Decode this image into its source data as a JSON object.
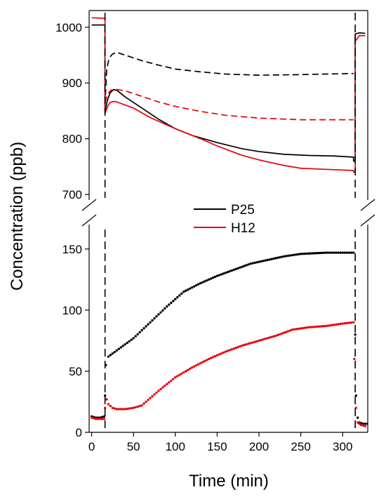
{
  "chart_data": {
    "type": "line",
    "xlabel": "Time (min)",
    "ylabel": "Concentration (ppb)",
    "xlim": [
      -3,
      330
    ],
    "x_ticks": [
      "0",
      "50",
      "100",
      "150",
      "200",
      "250",
      "300"
    ],
    "x_tick_values": [
      0,
      50,
      100,
      150,
      200,
      250,
      300
    ],
    "broken_y_axis": true,
    "upper_panel": {
      "ylim": [
        690,
        1030
      ],
      "y_ticks": [
        "700",
        "800",
        "900",
        "1000"
      ],
      "y_tick_values": [
        700,
        800,
        900,
        1000
      ]
    },
    "lower_panel": {
      "ylim": [
        0,
        170
      ],
      "y_ticks": [
        "0",
        "50",
        "100",
        "150"
      ],
      "y_tick_values": [
        0,
        50,
        100,
        150
      ]
    },
    "vertical_markers": [
      16,
      315
    ],
    "legend": {
      "position": "center",
      "entries": [
        {
          "label": "P25",
          "color": "#000000"
        },
        {
          "label": "H12",
          "color": "#e8000b"
        }
      ]
    },
    "series": [
      {
        "id": "upper-black-solid",
        "panel": "upper",
        "color": "#000000",
        "style": "solid",
        "points": [
          [
            0,
            1004
          ],
          [
            16,
            1004
          ],
          [
            16,
            850
          ],
          [
            19,
            870
          ],
          [
            22,
            882
          ],
          [
            26,
            888
          ],
          [
            30,
            887
          ],
          [
            40,
            875
          ],
          [
            60,
            855
          ],
          [
            80,
            835
          ],
          [
            100,
            818
          ],
          [
            120,
            806
          ],
          [
            150,
            793
          ],
          [
            180,
            782
          ],
          [
            200,
            777
          ],
          [
            230,
            772
          ],
          [
            260,
            770
          ],
          [
            290,
            769
          ],
          [
            313,
            767
          ],
          [
            313,
            760
          ],
          [
            315,
            760
          ],
          [
            315,
            988
          ],
          [
            320,
            990
          ],
          [
            327,
            989
          ]
        ]
      },
      {
        "id": "upper-black-dashed",
        "panel": "upper",
        "color": "#000000",
        "style": "dashed",
        "points": [
          [
            16,
            860
          ],
          [
            18,
            925
          ],
          [
            21,
            945
          ],
          [
            25,
            952
          ],
          [
            30,
            955
          ],
          [
            40,
            950
          ],
          [
            60,
            940
          ],
          [
            80,
            932
          ],
          [
            100,
            925
          ],
          [
            130,
            920
          ],
          [
            160,
            916
          ],
          [
            200,
            914
          ],
          [
            250,
            915
          ],
          [
            280,
            916
          ],
          [
            313,
            917
          ]
        ]
      },
      {
        "id": "upper-red-solid",
        "panel": "upper",
        "color": "#e8000b",
        "style": "solid",
        "points": [
          [
            0,
            1017
          ],
          [
            16,
            1016
          ],
          [
            16,
            845
          ],
          [
            19,
            858
          ],
          [
            22,
            865
          ],
          [
            26,
            867
          ],
          [
            30,
            866
          ],
          [
            50,
            855
          ],
          [
            70,
            838
          ],
          [
            100,
            818
          ],
          [
            130,
            800
          ],
          [
            150,
            787
          ],
          [
            180,
            770
          ],
          [
            200,
            762
          ],
          [
            230,
            752
          ],
          [
            250,
            747
          ],
          [
            280,
            745
          ],
          [
            313,
            743
          ],
          [
            313,
            740
          ],
          [
            315,
            740
          ],
          [
            315,
            975
          ],
          [
            320,
            985
          ],
          [
            327,
            985
          ]
        ]
      },
      {
        "id": "upper-red-dashed",
        "panel": "upper",
        "color": "#e8000b",
        "style": "dashed",
        "points": [
          [
            16,
            865
          ],
          [
            19,
            880
          ],
          [
            23,
            887
          ],
          [
            28,
            889
          ],
          [
            40,
            886
          ],
          [
            60,
            876
          ],
          [
            80,
            866
          ],
          [
            100,
            858
          ],
          [
            130,
            849
          ],
          [
            160,
            842
          ],
          [
            200,
            837
          ],
          [
            250,
            834
          ],
          [
            280,
            834
          ],
          [
            313,
            834
          ]
        ]
      },
      {
        "id": "lower-black-dotted",
        "panel": "lower",
        "color": "#000000",
        "style": "dotted",
        "points": [
          [
            0,
            13
          ],
          [
            5,
            12
          ],
          [
            10,
            12
          ],
          [
            15,
            13
          ],
          [
            16,
            30
          ],
          [
            17,
            55
          ],
          [
            20,
            62
          ],
          [
            30,
            67
          ],
          [
            50,
            77
          ],
          [
            70,
            90
          ],
          [
            90,
            103
          ],
          [
            110,
            115
          ],
          [
            130,
            122
          ],
          [
            150,
            128
          ],
          [
            170,
            133
          ],
          [
            190,
            138
          ],
          [
            210,
            141
          ],
          [
            230,
            144
          ],
          [
            250,
            146
          ],
          [
            280,
            147
          ],
          [
            300,
            147
          ],
          [
            313,
            147
          ],
          [
            315,
            80
          ],
          [
            316,
            30
          ],
          [
            318,
            12
          ],
          [
            320,
            8
          ],
          [
            325,
            7
          ],
          [
            330,
            7
          ]
        ]
      },
      {
        "id": "lower-red-dotted",
        "panel": "lower",
        "color": "#e8000b",
        "style": "dotted",
        "points": [
          [
            0,
            12
          ],
          [
            5,
            11
          ],
          [
            10,
            11
          ],
          [
            15,
            11
          ],
          [
            16,
            20
          ],
          [
            18,
            27
          ],
          [
            20,
            23
          ],
          [
            25,
            20
          ],
          [
            30,
            19
          ],
          [
            40,
            19
          ],
          [
            50,
            20
          ],
          [
            60,
            22
          ],
          [
            70,
            28
          ],
          [
            80,
            34
          ],
          [
            100,
            45
          ],
          [
            120,
            53
          ],
          [
            140,
            60
          ],
          [
            160,
            66
          ],
          [
            180,
            71
          ],
          [
            200,
            75
          ],
          [
            220,
            79
          ],
          [
            240,
            84
          ],
          [
            260,
            86
          ],
          [
            280,
            87
          ],
          [
            300,
            89
          ],
          [
            313,
            90
          ],
          [
            314,
            60
          ],
          [
            316,
            20
          ],
          [
            318,
            8
          ],
          [
            322,
            6
          ],
          [
            327,
            5
          ]
        ]
      }
    ]
  }
}
